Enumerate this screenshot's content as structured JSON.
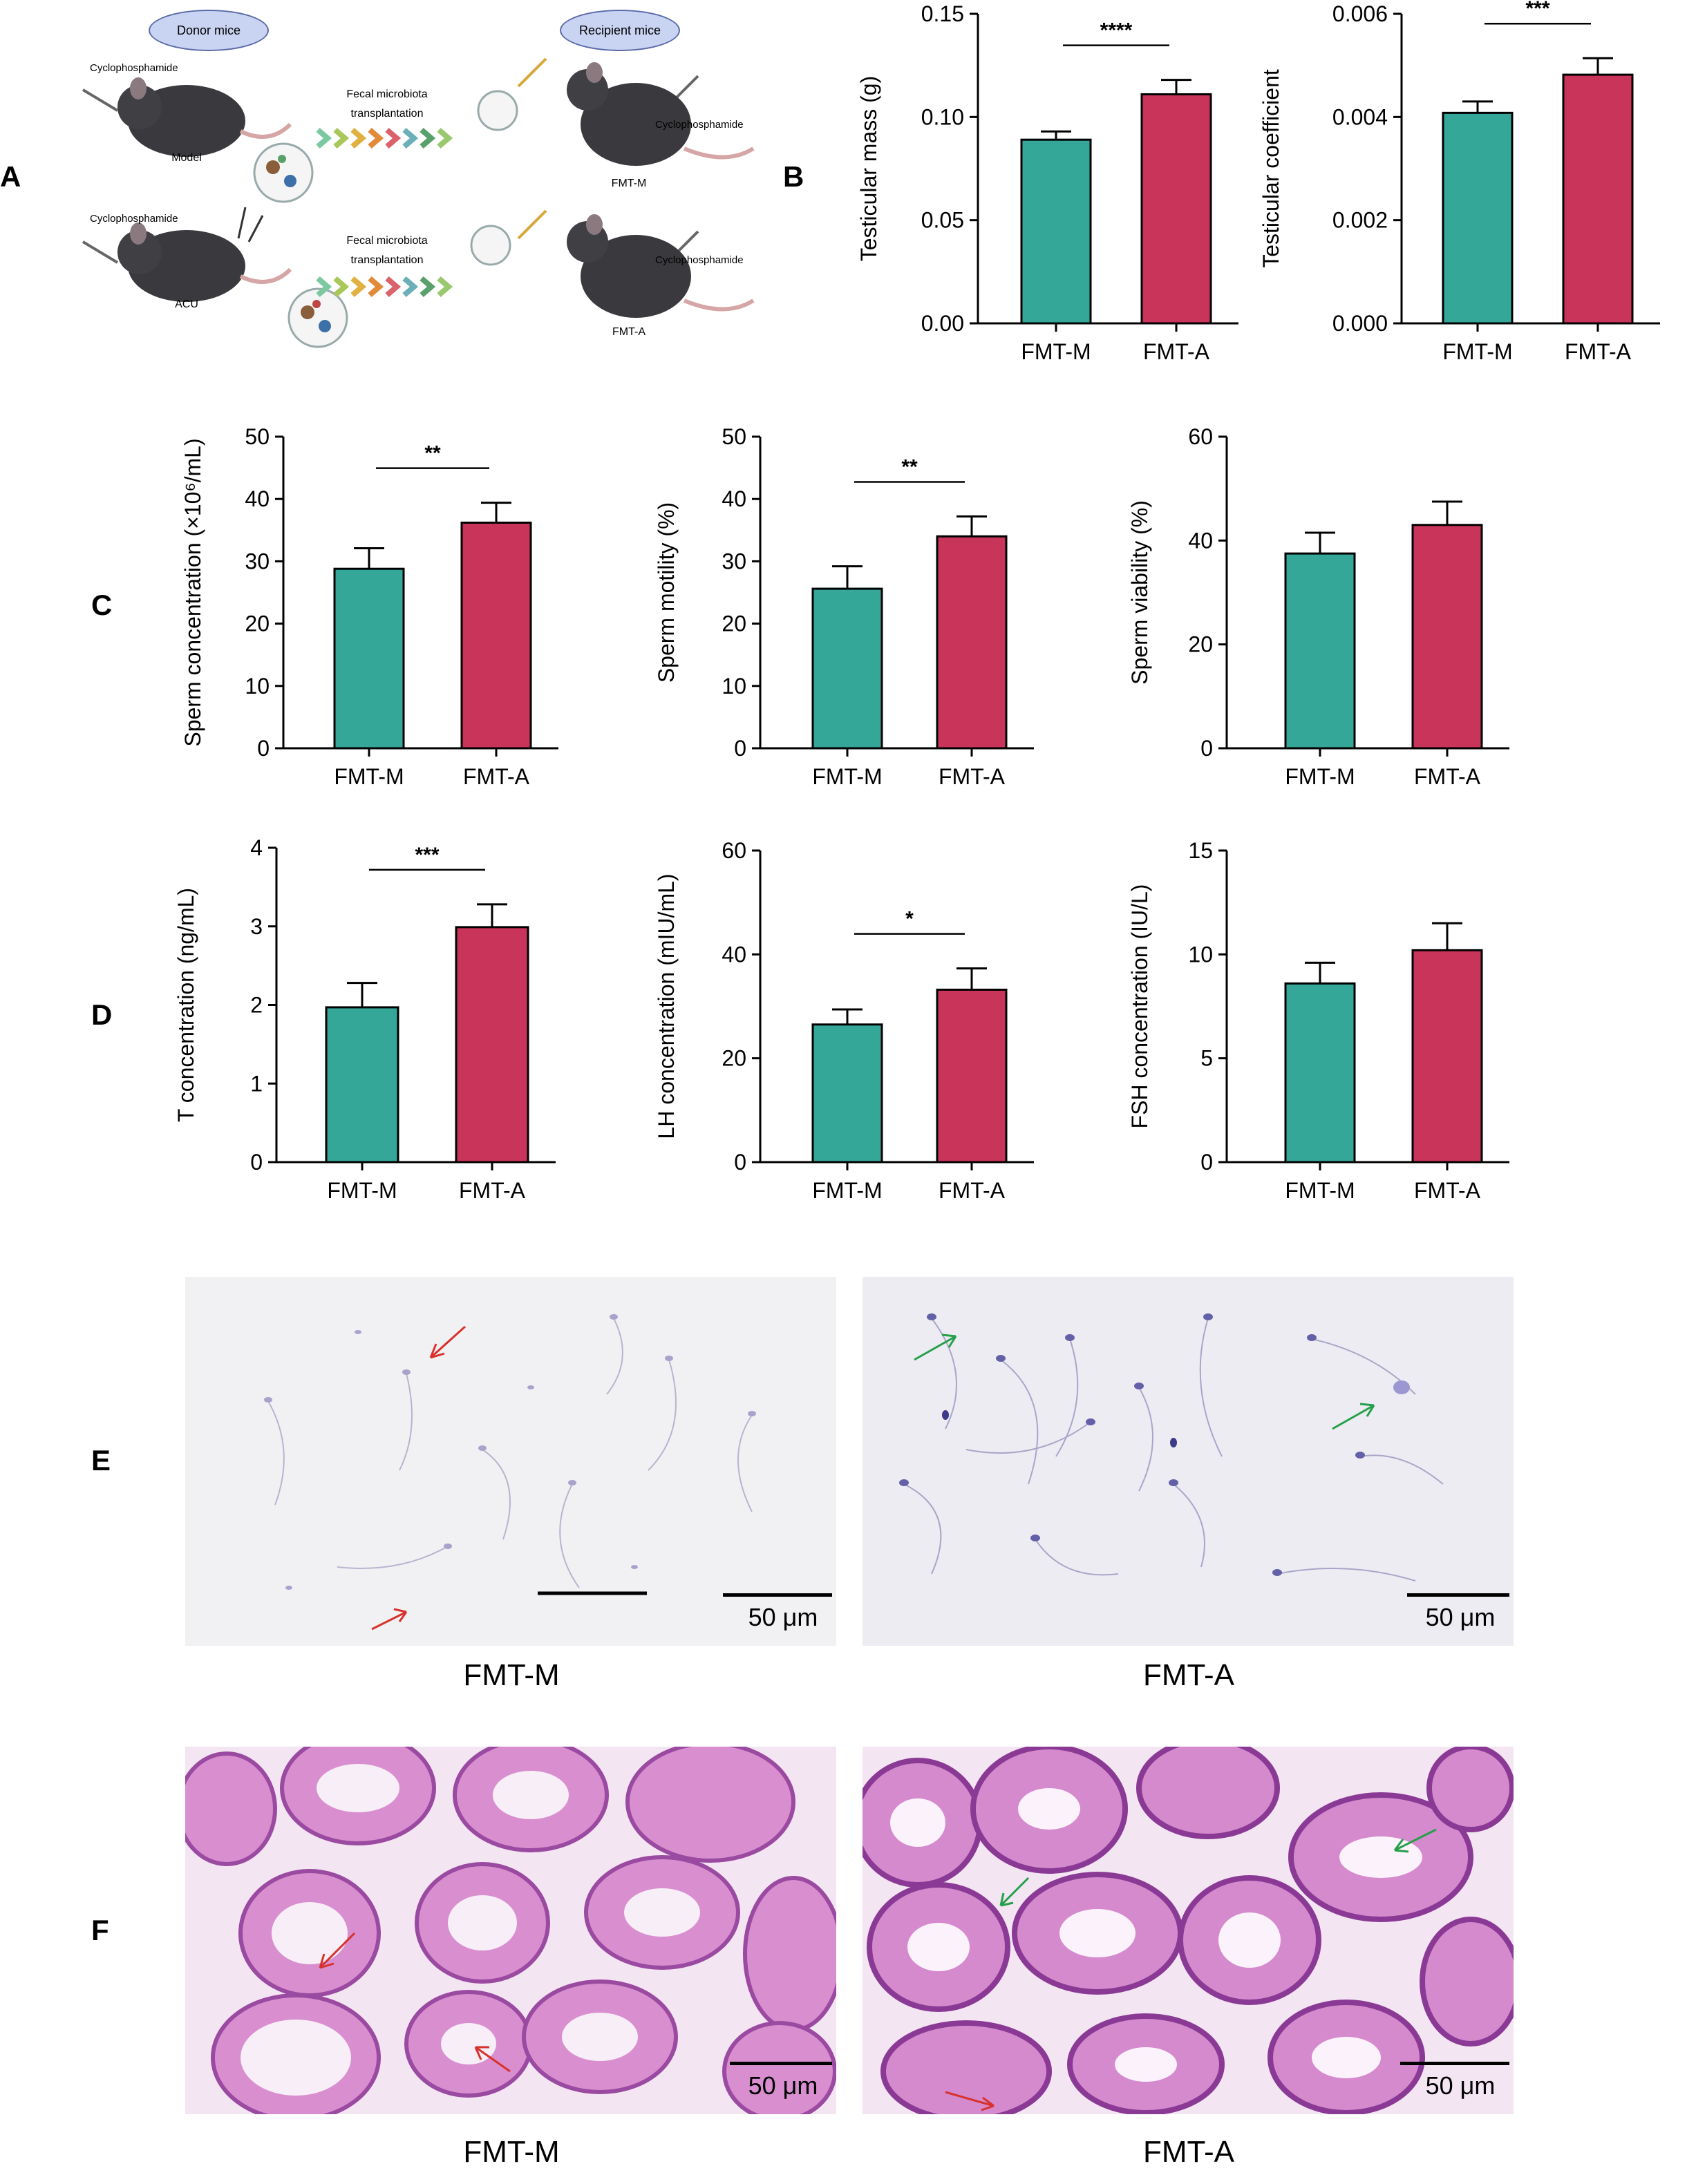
{
  "panels": {
    "A": "A",
    "B": "B",
    "C": "C",
    "D": "D",
    "E": "E",
    "F": "F"
  },
  "schematic": {
    "donor": "Donor mice",
    "recipient": "Recipient  mice",
    "cyclo": "Cyclophosphamide",
    "fmt_line1": "Fecal microbiota",
    "fmt_line2": "transplantation",
    "model": "Model",
    "acu": "ACU",
    "fmt_m": "FMT-M",
    "fmt_a": "FMT-A"
  },
  "colors": {
    "fmt_m": "#35a799",
    "fmt_a": "#c9345a"
  },
  "chart_data": [
    {
      "id": "testicular-mass",
      "type": "bar",
      "categories": [
        "FMT-M",
        "FMT-A"
      ],
      "values": [
        0.089,
        0.111
      ],
      "errors": [
        0.004,
        0.007
      ],
      "ylabel": "Testicular mass (g)",
      "ylim": [
        0,
        0.15
      ],
      "ticks": [
        "0.00",
        "0.05",
        "0.10",
        "0.15"
      ],
      "tickvals": [
        0,
        0.05,
        0.1,
        0.15
      ],
      "sig": "****"
    },
    {
      "id": "testicular-coefficient",
      "type": "bar",
      "categories": [
        "FMT-M",
        "FMT-A"
      ],
      "values": [
        0.00408,
        0.00482
      ],
      "errors": [
        0.00022,
        0.00032
      ],
      "ylabel": "Testicular coefficient",
      "ylim": [
        0,
        0.006
      ],
      "ticks": [
        "0.000",
        "0.002",
        "0.004",
        "0.006"
      ],
      "tickvals": [
        0,
        0.002,
        0.004,
        0.006
      ],
      "sig": "***"
    },
    {
      "id": "sperm-concentration",
      "type": "bar",
      "categories": [
        "FMT-M",
        "FMT-A"
      ],
      "values": [
        28.8,
        36.2
      ],
      "errors": [
        3.3,
        3.2
      ],
      "ylabel": "Sperm concentration (×10⁶/mL)",
      "ylim": [
        0,
        50
      ],
      "ticks": [
        "0",
        "10",
        "20",
        "30",
        "40",
        "50"
      ],
      "tickvals": [
        0,
        10,
        20,
        30,
        40,
        50
      ],
      "sig": "**"
    },
    {
      "id": "sperm-motility",
      "type": "bar",
      "categories": [
        "FMT-M",
        "FMT-A"
      ],
      "values": [
        25.6,
        34.0
      ],
      "errors": [
        3.6,
        3.2
      ],
      "ylabel": "Sperm motility  (%)",
      "ylim": [
        0,
        50
      ],
      "ticks": [
        "0",
        "10",
        "20",
        "30",
        "40",
        "50"
      ],
      "tickvals": [
        0,
        10,
        20,
        30,
        40,
        50
      ],
      "sig": "**"
    },
    {
      "id": "sperm-viability",
      "type": "bar",
      "categories": [
        "FMT-M",
        "FMT-A"
      ],
      "values": [
        37.5,
        43.0
      ],
      "errors": [
        4.0,
        4.5
      ],
      "ylabel": "Sperm viability  (%)",
      "ylim": [
        0,
        60
      ],
      "ticks": [
        "0",
        "20",
        "40",
        "60"
      ],
      "tickvals": [
        0,
        20,
        40,
        60
      ],
      "sig": ""
    },
    {
      "id": "t-concentration",
      "type": "bar",
      "categories": [
        "FMT-M",
        "FMT-A"
      ],
      "values": [
        1.97,
        2.99
      ],
      "errors": [
        0.31,
        0.29
      ],
      "ylabel": "T concentration (ng/mL)",
      "ylim": [
        0,
        4
      ],
      "ticks": [
        "0",
        "1",
        "2",
        "3",
        "4"
      ],
      "tickvals": [
        0,
        1,
        2,
        3,
        4
      ],
      "sig": "***"
    },
    {
      "id": "lh-concentration",
      "type": "bar",
      "categories": [
        "FMT-M",
        "FMT-A"
      ],
      "values": [
        26.5,
        33.2
      ],
      "errors": [
        2.9,
        4.1
      ],
      "ylabel": "LH concentration (mIU/mL)",
      "ylim": [
        0,
        60
      ],
      "ticks": [
        "0",
        "20",
        "40",
        "60"
      ],
      "tickvals": [
        0,
        20,
        40,
        60
      ],
      "sig": "*"
    },
    {
      "id": "fsh-concentration",
      "type": "bar",
      "categories": [
        "FMT-M",
        "FMT-A"
      ],
      "values": [
        8.6,
        10.2
      ],
      "errors": [
        1.0,
        1.3
      ],
      "ylabel": "FSH concentration  (IU/L)",
      "ylim": [
        0,
        15
      ],
      "ticks": [
        "0",
        "5",
        "10",
        "15"
      ],
      "tickvals": [
        0,
        5,
        10,
        15
      ],
      "sig": ""
    }
  ],
  "micrographs": {
    "scale": "50 μm",
    "left_caption": "FMT-M",
    "right_caption": "FMT-A"
  }
}
